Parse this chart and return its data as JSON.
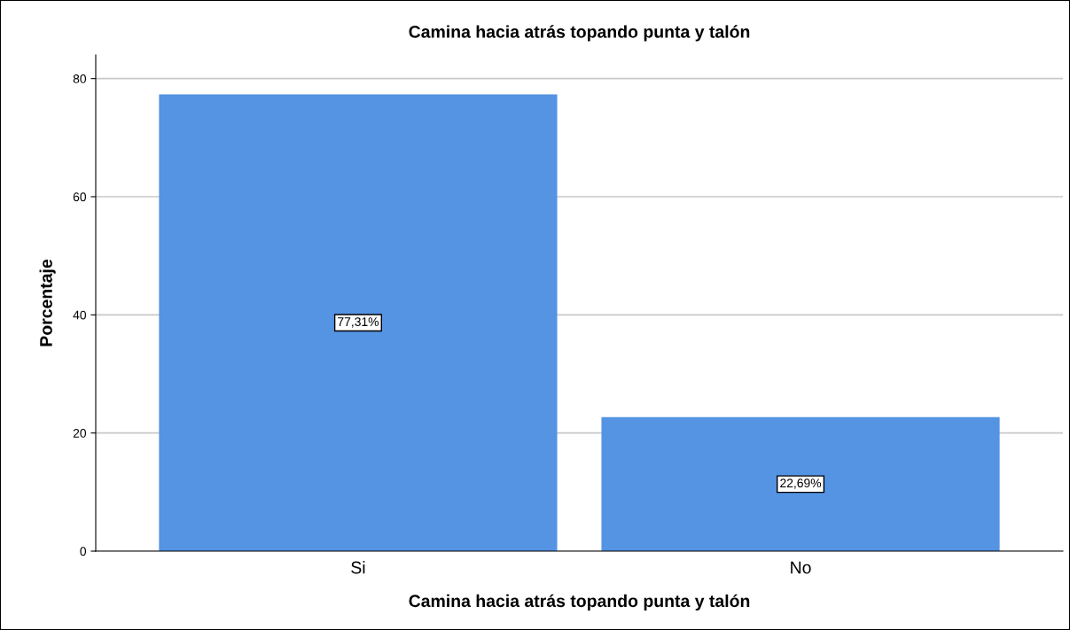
{
  "chart_data": {
    "type": "bar",
    "title": "Camina hacia atrás topando punta y talón",
    "xlabel": "Camina hacia atrás topando punta y talón",
    "ylabel": "Porcentaje",
    "categories": [
      "Si",
      "No"
    ],
    "values": [
      77.31,
      22.69
    ],
    "value_labels": [
      "77,31%",
      "22,69%"
    ],
    "color": "#5593e3",
    "ylim": [
      0,
      84
    ],
    "yticks": [
      0,
      20,
      40,
      60,
      80
    ],
    "grid": "y"
  }
}
